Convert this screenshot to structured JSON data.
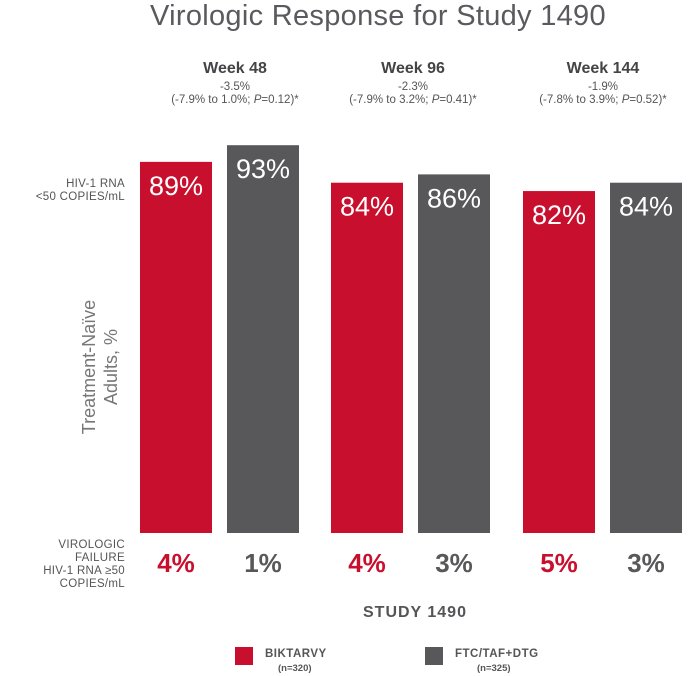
{
  "title": "Virologic Response for Study 1490",
  "row_label_top": "HIV-1 RNA\n<50 COPIES/mL",
  "y_axis_title": "Treatment-Naïve\nAdults, %",
  "row_label_bottom": "VIROLOGIC\nFAILURE\nHIV-1 RNA ≥50\nCOPIES/mL",
  "x_title": "STUDY 1490",
  "colors": {
    "biktarvy": "#c8102e",
    "ftc": "#58585b"
  },
  "weeks": [
    {
      "label": "Week 48",
      "diff": "-3.5%",
      "ci_pre": "(-7.9% to 1.0%; ",
      "p_label": "P",
      "ci_post": "=0.12)*"
    },
    {
      "label": "Week 96",
      "diff": "-2.3%",
      "ci_pre": "(-7.9% to 3.2%; ",
      "p_label": "P",
      "ci_post": "=0.41)*"
    },
    {
      "label": "Week 144",
      "diff": "-1.9%",
      "ci_pre": "(-7.8% to 3.9%; ",
      "p_label": "P",
      "ci_post": "=0.52)*"
    }
  ],
  "legend": [
    {
      "name": "BIKTARVY",
      "n": "(n=320)"
    },
    {
      "name": "FTC/TAF+DTG",
      "n": "(n=325)"
    }
  ],
  "chart_data": {
    "type": "bar",
    "title": "Virologic Response for Study 1490",
    "categories": [
      "Week 48",
      "Week 96",
      "Week 144"
    ],
    "ylabel": "Treatment-Naïve Adults, %",
    "xlabel": "STUDY 1490",
    "ylim": [
      0,
      100
    ],
    "grid": false,
    "legend_position": "bottom",
    "series": [
      {
        "name": "BIKTARVY",
        "values": [
          89,
          84,
          82
        ],
        "labels": [
          "89%",
          "84%",
          "82%"
        ],
        "failure": [
          4,
          4,
          5
        ],
        "failure_labels": [
          "4%",
          "4%",
          "5%"
        ]
      },
      {
        "name": "FTC/TAF+DTG",
        "values": [
          93,
          86,
          84
        ],
        "labels": [
          "93%",
          "86%",
          "84%"
        ],
        "failure": [
          1,
          3,
          3
        ],
        "failure_labels": [
          "1%",
          "3%",
          "3%"
        ]
      }
    ]
  }
}
